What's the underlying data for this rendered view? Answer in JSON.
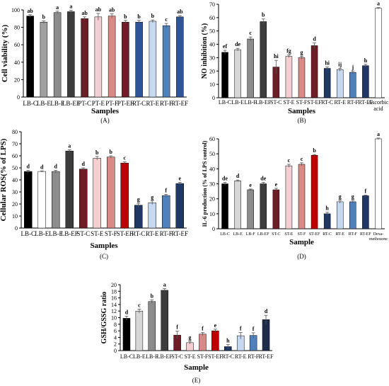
{
  "colors": {
    "black": "#000000",
    "lightgray": "#d6d6d6",
    "gray": "#8c8c8c",
    "darkgray": "#3c3c3c",
    "darkred": "#6e1d26",
    "pink": "#f3cfd1",
    "rose": "#d98a86",
    "red": "#c00000",
    "navy": "#203864",
    "lightblue": "#c6d9f1",
    "blue": "#4f81bd",
    "darknavy": "#1f2d4a",
    "white": "#ffffff",
    "mediumgray": "#a0a0a0",
    "blue2": "#2e5597"
  },
  "chart_data": [
    {
      "panel": "(A)",
      "type": "bar",
      "ylabel": "Cell viability (%)",
      "xlabel": "Samples",
      "ylim": [
        0,
        100
      ],
      "yticks": [
        0,
        20,
        40,
        60,
        80,
        100
      ],
      "categories": [
        "LB-C",
        "LB-E",
        "LB-F",
        "LB-EF",
        "PT-C",
        "PT-E",
        "PT-F",
        "PT-EF",
        "RT-C",
        "RT-E",
        "RT-F",
        "RT-EF"
      ],
      "values": [
        93,
        86,
        97,
        98,
        90,
        92,
        93,
        86,
        86,
        87,
        82,
        92
      ],
      "errors": [
        1.5,
        1.5,
        1.5,
        1.5,
        2,
        4,
        2.5,
        2,
        2,
        1.5,
        2.5,
        1.5
      ],
      "letters": [
        "ab",
        "b",
        "a",
        "a",
        "ab",
        "ab",
        "ab",
        "b",
        "b",
        "b",
        "c",
        "ab"
      ],
      "colors": [
        "black",
        "mediumgray",
        "gray",
        "darkgray",
        "darkred",
        "pink",
        "rose",
        "darkred",
        "blue2",
        "lightblue",
        "blue",
        "blue2"
      ]
    },
    {
      "panel": "(B)",
      "type": "bar",
      "ylabel": "NO inhibition (%)",
      "xlabel": "Samples",
      "ylim": [
        0,
        70
      ],
      "yticks": [
        0,
        10,
        20,
        30,
        40,
        50,
        60,
        70
      ],
      "categories": [
        "LB-C",
        "LB-E",
        "LB-F",
        "LB-EF",
        "ST-C",
        "ST-E",
        "ST-F",
        "ST-EF",
        "RT-C",
        "RT-E",
        "RT-F",
        "RT-EF",
        "Ascorbic acid"
      ],
      "values": [
        34,
        36,
        44,
        57,
        23,
        31,
        30,
        39,
        22,
        21,
        19,
        24,
        67
      ],
      "errors": [
        1.5,
        1,
        1.5,
        2,
        5,
        1,
        1,
        2,
        1,
        1,
        1,
        1,
        0.5
      ],
      "letters": [
        "ef",
        "de",
        "c",
        "b",
        "hi",
        "fg",
        "g",
        "d",
        "hi",
        "ij",
        "j",
        "h",
        "a"
      ],
      "colors": [
        "black",
        "lightgray",
        "gray",
        "darkgray",
        "darkred",
        "pink",
        "rose",
        "darkred",
        "navy",
        "lightblue",
        "blue",
        "navy",
        "white"
      ]
    },
    {
      "panel": "(C)",
      "type": "bar",
      "ylabel": "Cellular ROS(% of LPS)",
      "xlabel": "Samples",
      "ylim": [
        0,
        80
      ],
      "yticks": [
        0,
        10,
        20,
        30,
        40,
        50,
        60,
        70,
        80
      ],
      "categories": [
        "LB-C",
        "LB-E",
        "LB-F",
        "LB-EF",
        "ST-C",
        "ST-E",
        "ST-F",
        "ST-EF",
        "RT-C",
        "RT-E",
        "RT-F",
        "RT-EF"
      ],
      "values": [
        47,
        47,
        47,
        64,
        49,
        58,
        59,
        54,
        19,
        21,
        27,
        37
      ],
      "errors": [
        1,
        0.5,
        1,
        1,
        1,
        1.5,
        1,
        1,
        1.5,
        1.5,
        1,
        1
      ],
      "letters": [
        "d",
        "d",
        "d",
        "a",
        "d",
        "b",
        "b",
        "c",
        "g",
        "g",
        "f",
        "e"
      ],
      "colors": [
        "black",
        "white",
        "gray",
        "darkgray",
        "darkred",
        "pink",
        "rose",
        "red",
        "navy",
        "lightblue",
        "blue",
        "navy"
      ]
    },
    {
      "panel": "(D)",
      "type": "bar",
      "ylabel": "IL-6 production (% of LPS control)",
      "xlabel": "Sample",
      "ylim": [
        0,
        60
      ],
      "yticks": [
        0,
        10,
        20,
        30,
        40,
        50,
        60
      ],
      "categories": [
        "LB-C",
        "LB-E",
        "LB-F",
        "LB-EF",
        "ST-C",
        "ST-E",
        "ST-F",
        "ST-EF",
        "RT-C",
        "RT-E",
        "RT-F",
        "RT-EF",
        "Dexa-methosone"
      ],
      "values": [
        30,
        32,
        26,
        30,
        26,
        42,
        43,
        49,
        10,
        18,
        18,
        22,
        60
      ],
      "errors": [
        1,
        0.5,
        0.5,
        1,
        1,
        1,
        1,
        0.5,
        1,
        1,
        1,
        0.5,
        0.5
      ],
      "letters": [
        "de",
        "d",
        "e",
        "de",
        "e",
        "c",
        "c",
        "b",
        "h",
        "g",
        "g",
        "f",
        "a"
      ],
      "colors": [
        "black",
        "lightgray",
        "gray",
        "darkgray",
        "darkred",
        "pink",
        "rose",
        "red",
        "navy",
        "lightblue",
        "blue",
        "navy",
        "white"
      ]
    },
    {
      "panel": "(E)",
      "type": "bar",
      "ylabel": "GSH/GSSG ratio",
      "xlabel": "Sample",
      "ylim": [
        0,
        20
      ],
      "yticks": [
        0,
        2,
        4,
        6,
        8,
        10,
        12,
        14,
        16,
        18,
        20
      ],
      "categories": [
        "LB-C",
        "LB-E",
        "LB-F",
        "LB-EF",
        "ST-C",
        "ST-E",
        "ST-F",
        "ST-EF",
        "RT-C",
        "RT-E",
        "RT-F",
        "RT-EF"
      ],
      "values": [
        9.8,
        12,
        14.9,
        18.3,
        4.7,
        2.4,
        5,
        6,
        1.2,
        4.5,
        4.6,
        9.4
      ],
      "errors": [
        0.6,
        0.6,
        0.5,
        0.5,
        1.2,
        0.4,
        0.5,
        0.5,
        0.6,
        1,
        0.8,
        1.3
      ],
      "letters": [
        "d",
        "c",
        "b",
        "a",
        "f",
        "g",
        "f",
        "e",
        "h",
        "f",
        "f",
        "d"
      ],
      "colors": [
        "black",
        "lightgray",
        "gray",
        "darkgray",
        "darkred",
        "pink",
        "rose",
        "red",
        "navy",
        "lightblue",
        "blue",
        "darknavy"
      ]
    }
  ]
}
